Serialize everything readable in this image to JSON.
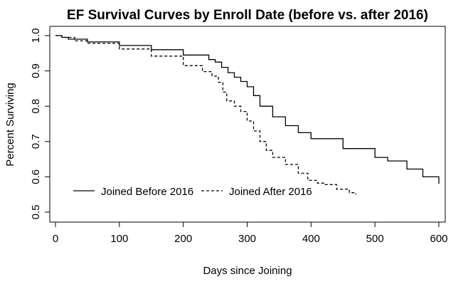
{
  "chart_data": {
    "type": "line",
    "title": "EF Survival Curves by Enroll Date (before vs. after 2016)",
    "xlabel": "Days since Joining",
    "ylabel": "Percent Surviving",
    "xlim": [
      0,
      600
    ],
    "ylim": [
      0.48,
      1.01
    ],
    "xticks": [
      0,
      100,
      200,
      300,
      400,
      500,
      600
    ],
    "yticks": [
      0.5,
      0.6,
      0.7,
      0.8,
      0.9,
      1.0
    ],
    "ytick_labels": [
      "0.5",
      "0.6",
      "0.7",
      "0.8",
      "0.9",
      "1.0"
    ],
    "grid": false,
    "legend_position": "bottom-left",
    "series": [
      {
        "name": "Joined Before 2016",
        "style": "solid",
        "color": "#000000",
        "points": [
          [
            0,
            1.0
          ],
          [
            10,
            0.995
          ],
          [
            20,
            0.99
          ],
          [
            50,
            0.982
          ],
          [
            100,
            0.972
          ],
          [
            150,
            0.96
          ],
          [
            200,
            0.945
          ],
          [
            240,
            0.932
          ],
          [
            250,
            0.925
          ],
          [
            260,
            0.91
          ],
          [
            270,
            0.895
          ],
          [
            280,
            0.882
          ],
          [
            290,
            0.87
          ],
          [
            300,
            0.855
          ],
          [
            310,
            0.83
          ],
          [
            320,
            0.8
          ],
          [
            340,
            0.77
          ],
          [
            360,
            0.745
          ],
          [
            380,
            0.725
          ],
          [
            400,
            0.708
          ],
          [
            450,
            0.68
          ],
          [
            500,
            0.655
          ],
          [
            520,
            0.645
          ],
          [
            550,
            0.622
          ],
          [
            575,
            0.6
          ],
          [
            600,
            0.58
          ]
        ]
      },
      {
        "name": "Joined After 2016",
        "style": "dashed",
        "color": "#000000",
        "points": [
          [
            0,
            1.0
          ],
          [
            10,
            0.995
          ],
          [
            30,
            0.985
          ],
          [
            50,
            0.978
          ],
          [
            100,
            0.962
          ],
          [
            150,
            0.942
          ],
          [
            200,
            0.915
          ],
          [
            230,
            0.898
          ],
          [
            245,
            0.885
          ],
          [
            255,
            0.868
          ],
          [
            262,
            0.84
          ],
          [
            268,
            0.815
          ],
          [
            280,
            0.8
          ],
          [
            290,
            0.785
          ],
          [
            300,
            0.758
          ],
          [
            310,
            0.73
          ],
          [
            320,
            0.7
          ],
          [
            330,
            0.675
          ],
          [
            340,
            0.655
          ],
          [
            360,
            0.635
          ],
          [
            380,
            0.61
          ],
          [
            395,
            0.59
          ],
          [
            410,
            0.582
          ],
          [
            420,
            0.578
          ],
          [
            440,
            0.565
          ],
          [
            460,
            0.555
          ],
          [
            470,
            0.55
          ]
        ]
      }
    ]
  }
}
